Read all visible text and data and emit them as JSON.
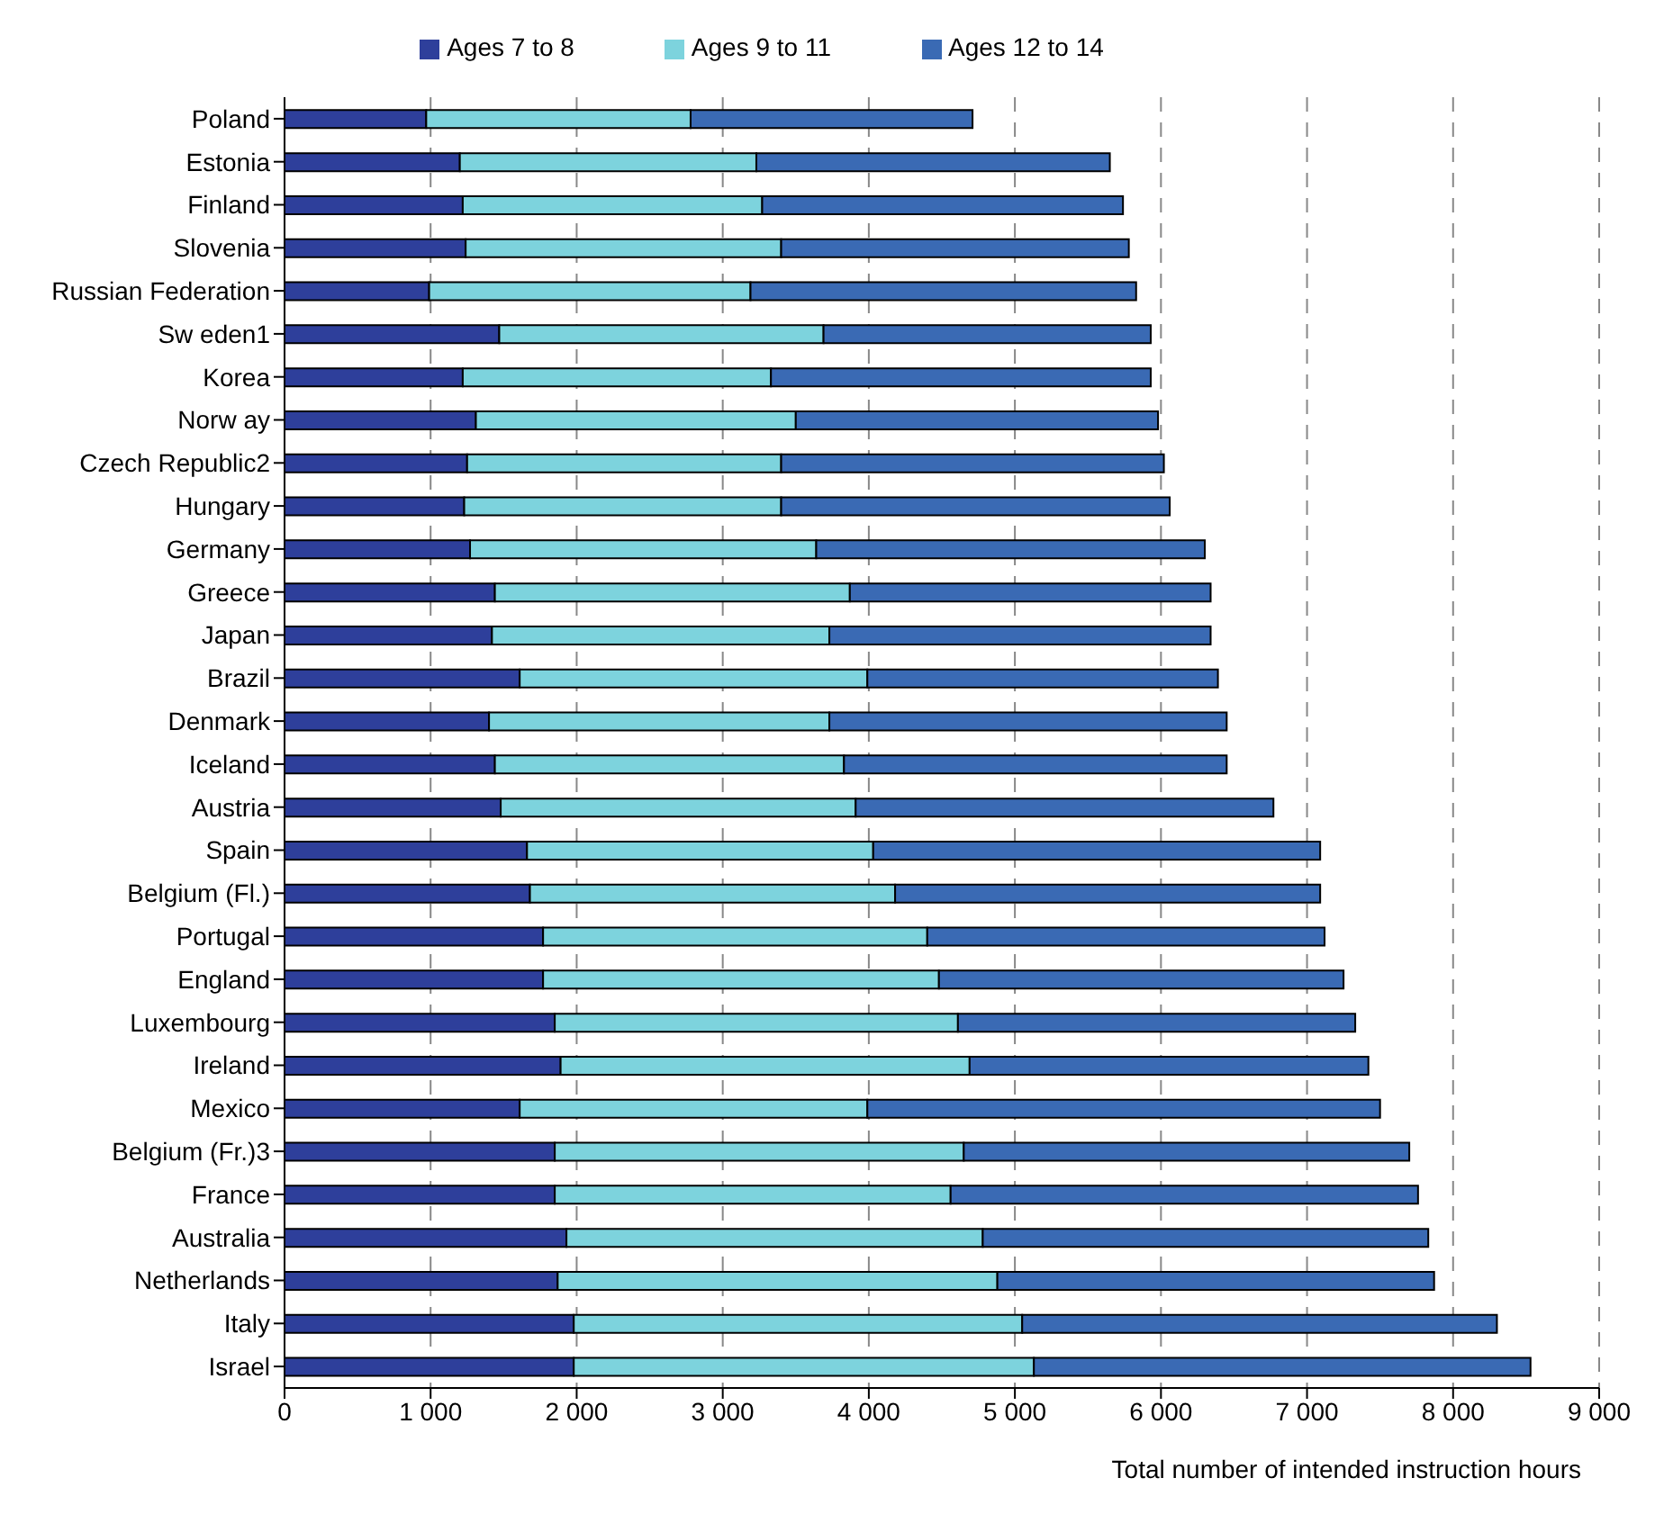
{
  "chart_data": {
    "type": "bar",
    "orientation": "horizontal",
    "stacked": true,
    "xlabel": "Total number of intended instruction hours",
    "categories": [
      "Poland",
      "Estonia",
      "Finland",
      "Slovenia",
      "Russian Federation",
      "Sw eden1",
      "Korea",
      "Norw ay",
      "Czech Republic2",
      "Hungary",
      "Germany",
      "Greece",
      "Japan",
      "Brazil",
      "Denmark",
      "Iceland",
      "Austria",
      "Spain",
      "Belgium (Fl.)",
      "Portugal",
      "England",
      "Luxembourg",
      "Ireland",
      "Mexico",
      "Belgium (Fr.)3",
      "France",
      "Australia",
      "Netherlands",
      "Italy",
      "Israel"
    ],
    "series": [
      {
        "name": "Ages 7 to 8",
        "color": "#2e3f9b",
        "values": [
          970,
          1200,
          1220,
          1240,
          990,
          1470,
          1220,
          1310,
          1250,
          1230,
          1270,
          1440,
          1420,
          1610,
          1400,
          1440,
          1480,
          1660,
          1680,
          1770,
          1770,
          1850,
          1890,
          1610,
          1850,
          1850,
          1930,
          1870,
          1980,
          1980
        ]
      },
      {
        "name": "Ages 9 to 11",
        "color": "#7dd3dd",
        "values": [
          1810,
          2030,
          2050,
          2160,
          2200,
          2220,
          2110,
          2190,
          2150,
          2170,
          2370,
          2430,
          2310,
          2380,
          2330,
          2390,
          2430,
          2370,
          2500,
          2630,
          2710,
          2760,
          2800,
          2380,
          2800,
          2710,
          2850,
          3010,
          3070,
          3150
        ]
      },
      {
        "name": "Ages 12 to 14",
        "color": "#3a6ab4",
        "values": [
          1930,
          2420,
          2470,
          2380,
          2640,
          2240,
          2600,
          2480,
          2620,
          2660,
          2660,
          2470,
          2610,
          2400,
          2720,
          2620,
          2860,
          3060,
          2910,
          2720,
          2770,
          2720,
          2730,
          3510,
          3050,
          3200,
          3050,
          2990,
          3250,
          3400
        ]
      }
    ],
    "xlim": [
      0,
      9000
    ],
    "xticks": [
      0,
      {
        "value": 1000,
        "label": "1 000"
      },
      {
        "value": 2000,
        "label": "2 000"
      },
      {
        "value": 3000,
        "label": "3 000"
      },
      {
        "value": 4000,
        "label": "4 000"
      },
      {
        "value": 5000,
        "label": "5 000"
      },
      {
        "value": 6000,
        "label": "6 000"
      },
      {
        "value": 7000,
        "label": "7 000"
      },
      {
        "value": 8000,
        "label": "8 000"
      },
      {
        "value": 9000,
        "label": "9 000"
      }
    ],
    "grid": "x",
    "legend": "top"
  }
}
